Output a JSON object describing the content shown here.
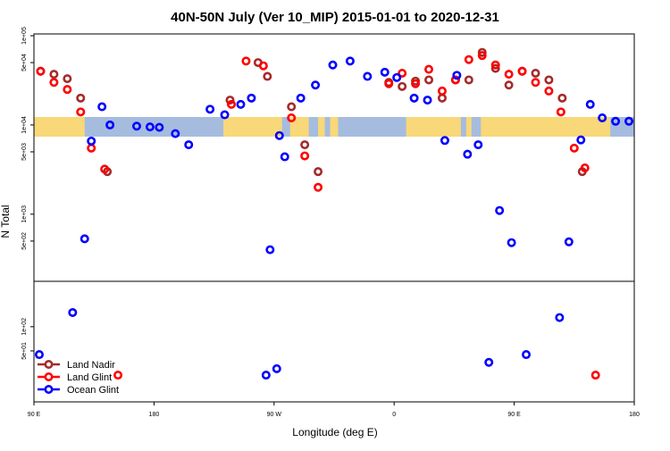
{
  "chart_data": {
    "type": "scatter",
    "title": "40N-50N July (Ver 10_MIP)   2015-01-01 to 2020-12-31",
    "xlabel": "Longitude (deg E)",
    "ylabel": "N Total",
    "x_ticks": [
      {
        "value": 90,
        "label": "90 E"
      },
      {
        "value": 180,
        "label": "180"
      },
      {
        "value": 270,
        "label": "90 W"
      },
      {
        "value": 360,
        "label": "0"
      },
      {
        "value": 450,
        "label": "90 E"
      },
      {
        "value": 540,
        "label": "180"
      }
    ],
    "xlim": [
      90,
      540
    ],
    "y_upper_scale": "log",
    "y_upper_ticks": [
      "1e+05",
      "5e+04",
      "1e+04",
      "5e+03",
      "1e+03",
      "5e+02"
    ],
    "y_lower_ticks": [
      "1e+02",
      "5e+01"
    ],
    "y_upper_ticks_values": [
      100000,
      50000,
      10000,
      5000,
      1000,
      500
    ],
    "y_lower_ticks_values": [
      100,
      50
    ],
    "ylim_upper": [
      250,
      100000
    ],
    "ylim_lower": [
      15,
      250
    ],
    "colors": {
      "land_nadir": "#a52a2a",
      "land_glint": "#ff0000",
      "ocean_glint": "#0000ff",
      "ocean_band": "#a5bcdf",
      "land_band": "#f8d878"
    },
    "legend": [
      {
        "key": "land_nadir",
        "label": "Land Nadir"
      },
      {
        "key": "land_glint",
        "label": "Land Glint"
      },
      {
        "key": "ocean_glint",
        "label": "Ocean Glint"
      }
    ],
    "legend_position": "bottom-left",
    "series": [
      {
        "name": "Land Nadir",
        "key": "land_nadir",
        "points": [
          [
            95,
            40000
          ],
          [
            105,
            37000
          ],
          [
            115,
            33000
          ],
          [
            125,
            20000
          ],
          [
            145,
            3000
          ],
          [
            237,
            19000
          ],
          [
            258,
            50000
          ],
          [
            265,
            35000
          ],
          [
            283,
            16000
          ],
          [
            293,
            6000
          ],
          [
            303,
            3000
          ],
          [
            356,
            30000
          ],
          [
            366,
            27000
          ],
          [
            376,
            31000
          ],
          [
            386,
            32000
          ],
          [
            396,
            20000
          ],
          [
            406,
            32000
          ],
          [
            416,
            32000
          ],
          [
            426,
            65000
          ],
          [
            436,
            43000
          ],
          [
            446,
            28000
          ],
          [
            456,
            40000
          ],
          [
            466,
            38000
          ],
          [
            476,
            32000
          ],
          [
            486,
            20000
          ],
          [
            501,
            3000
          ]
        ]
      },
      {
        "name": "Land Glint",
        "key": "land_glint",
        "points": [
          [
            95,
            40000
          ],
          [
            105,
            30000
          ],
          [
            115,
            25000
          ],
          [
            125,
            14000
          ],
          [
            133,
            5500
          ],
          [
            143,
            3200
          ],
          [
            153,
            25
          ],
          [
            238,
            17000
          ],
          [
            249,
            52000
          ],
          [
            262,
            46000
          ],
          [
            283,
            12000
          ],
          [
            293,
            4500
          ],
          [
            303,
            2000
          ],
          [
            356,
            29000
          ],
          [
            366,
            38000
          ],
          [
            376,
            29000
          ],
          [
            386,
            42000
          ],
          [
            396,
            24000
          ],
          [
            406,
            32000
          ],
          [
            416,
            54000
          ],
          [
            426,
            60000
          ],
          [
            436,
            47000
          ],
          [
            446,
            37000
          ],
          [
            456,
            40000
          ],
          [
            466,
            30000
          ],
          [
            476,
            24000
          ],
          [
            485,
            14000
          ],
          [
            495,
            5500
          ],
          [
            503,
            3300
          ],
          [
            511,
            25
          ]
        ]
      },
      {
        "name": "Ocean Glint",
        "key": "ocean_glint",
        "points": [
          [
            94,
            45
          ],
          [
            119,
            150
          ],
          [
            128,
            530
          ],
          [
            133,
            6600
          ],
          [
            141,
            16000
          ],
          [
            147,
            10000
          ],
          [
            167,
            9700
          ],
          [
            177,
            9500
          ],
          [
            184,
            9400
          ],
          [
            196,
            8000
          ],
          [
            206,
            6000
          ],
          [
            222,
            15000
          ],
          [
            233,
            13000
          ],
          [
            245,
            17000
          ],
          [
            253,
            20000
          ],
          [
            264,
            25
          ],
          [
            267,
            400
          ],
          [
            272,
            30
          ],
          [
            274,
            7600
          ],
          [
            278,
            4400
          ],
          [
            290,
            20000
          ],
          [
            301,
            28000
          ],
          [
            314,
            47000
          ],
          [
            327,
            52000
          ],
          [
            340,
            35000
          ],
          [
            353,
            39000
          ],
          [
            362,
            34000
          ],
          [
            375,
            20000
          ],
          [
            385,
            19000
          ],
          [
            398,
            6700
          ],
          [
            407,
            36000
          ],
          [
            415,
            4700
          ],
          [
            423,
            6000
          ],
          [
            431,
            36
          ],
          [
            439,
            1100
          ],
          [
            448,
            480
          ],
          [
            459,
            45
          ],
          [
            484,
            130
          ],
          [
            491,
            490
          ],
          [
            500,
            6800
          ],
          [
            507,
            17000
          ],
          [
            516,
            12000
          ],
          [
            526,
            11000
          ],
          [
            536,
            11000
          ]
        ]
      }
    ]
  }
}
